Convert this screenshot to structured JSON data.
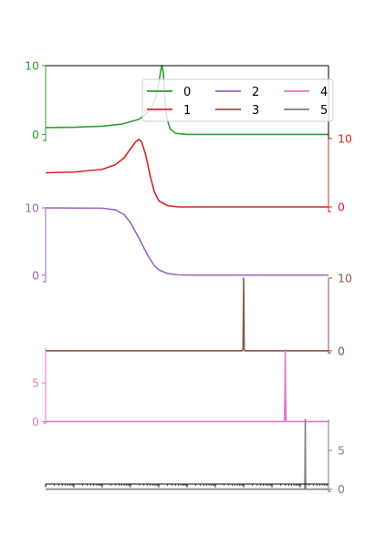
{
  "chart_data": {
    "type": "line",
    "title": "",
    "xlabel": "",
    "ylabel": "",
    "x_scale": "log",
    "x_tick_labels_shown": false,
    "grid": false,
    "legend": {
      "placement": "top-right",
      "columns": 3,
      "entries": [
        "0",
        "1",
        "2",
        "3",
        "4",
        "5"
      ]
    },
    "series": [
      {
        "name": "0",
        "color": "#2ca02c",
        "axis_side": "left",
        "ylim": [
          -1.0,
          10.0
        ],
        "yticks": [
          0,
          10
        ],
        "ytick_labels": [
          "0",
          "10"
        ],
        "points": [
          [
            1e-05,
            1.0
          ],
          [
            0.0001,
            1.05
          ],
          [
            0.001,
            1.2
          ],
          [
            0.005,
            1.5
          ],
          [
            0.02,
            2.2
          ],
          [
            0.05,
            3.5
          ],
          [
            0.08,
            5.5
          ],
          [
            0.1,
            7.5
          ],
          [
            0.12,
            9.5
          ],
          [
            0.13,
            10.0
          ],
          [
            0.145,
            9.0
          ],
          [
            0.16,
            6.0
          ],
          [
            0.19,
            2.5
          ],
          [
            0.25,
            0.8
          ],
          [
            0.4,
            0.15
          ],
          [
            1.0,
            0.0
          ],
          [
            100000.0,
            0.0
          ]
        ]
      },
      {
        "name": "1",
        "color": "#d62728",
        "axis_side": "right",
        "ylim": [
          -0.8,
          10.0
        ],
        "yticks": [
          0,
          10
        ],
        "ytick_labels": [
          "0",
          "10"
        ],
        "points": [
          [
            1e-05,
            5.0
          ],
          [
            0.0001,
            5.1
          ],
          [
            0.001,
            5.5
          ],
          [
            0.003,
            6.2
          ],
          [
            0.006,
            7.2
          ],
          [
            0.01,
            8.5
          ],
          [
            0.015,
            9.5
          ],
          [
            0.02,
            9.9
          ],
          [
            0.025,
            9.5
          ],
          [
            0.035,
            7.5
          ],
          [
            0.05,
            4.5
          ],
          [
            0.07,
            2.2
          ],
          [
            0.1,
            0.9
          ],
          [
            0.2,
            0.2
          ],
          [
            0.5,
            0.0
          ],
          [
            100000.0,
            0.0
          ]
        ]
      },
      {
        "name": "2",
        "color": "#9467bd",
        "axis_side": "left",
        "ylim": [
          -1.1,
          10.0
        ],
        "yticks": [
          0,
          10
        ],
        "ytick_labels": [
          "0",
          "10"
        ],
        "points": [
          [
            1e-05,
            10.0
          ],
          [
            0.001,
            9.95
          ],
          [
            0.003,
            9.7
          ],
          [
            0.006,
            9.0
          ],
          [
            0.01,
            7.8
          ],
          [
            0.02,
            5.5
          ],
          [
            0.04,
            3.0
          ],
          [
            0.07,
            1.4
          ],
          [
            0.1,
            0.8
          ],
          [
            0.2,
            0.25
          ],
          [
            0.5,
            0.05
          ],
          [
            2.0,
            0.0
          ],
          [
            100000.0,
            0.0
          ]
        ]
      },
      {
        "name": "3",
        "color": "#8c564b",
        "axis_side": "right",
        "ylim": [
          -0.4,
          10.0
        ],
        "yticks": [
          0,
          10
        ],
        "ytick_labels": [
          "0",
          "10"
        ],
        "points": [
          [
            1e-05,
            0.0
          ],
          [
            90,
            0.0
          ],
          [
            95,
            0.3
          ],
          [
            97,
            4.0
          ],
          [
            100,
            10.0
          ],
          [
            103,
            4.0
          ],
          [
            105,
            0.3
          ],
          [
            110,
            0.0
          ],
          [
            100000.0,
            0.0
          ]
        ]
      },
      {
        "name": "4",
        "color": "#e377c2",
        "axis_side": "left",
        "ylim": [
          -0.3,
          9.5
        ],
        "yticks": [
          0,
          5
        ],
        "ytick_labels": [
          "0",
          "5"
        ],
        "points": [
          [
            1e-05,
            0.0
          ],
          [
            2750,
            0.0
          ],
          [
            2850,
            3.0
          ],
          [
            2950,
            9.3
          ],
          [
            3050,
            3.0
          ],
          [
            3150,
            0.0
          ],
          [
            100000.0,
            0.0
          ]
        ]
      },
      {
        "name": "5",
        "color": "#7f7f7f",
        "axis_side": "right",
        "ylim": [
          -0.4,
          9.0
        ],
        "yticks": [
          0,
          5
        ],
        "ytick_labels": [
          "0",
          "5"
        ],
        "points": [
          [
            1e-05,
            0.0
          ],
          [
            14500,
            0.0
          ],
          [
            14800,
            3.0
          ],
          [
            15100,
            9.0
          ],
          [
            15400,
            3.0
          ],
          [
            15700,
            0.0
          ],
          [
            100000.0,
            0.0
          ]
        ]
      }
    ]
  }
}
